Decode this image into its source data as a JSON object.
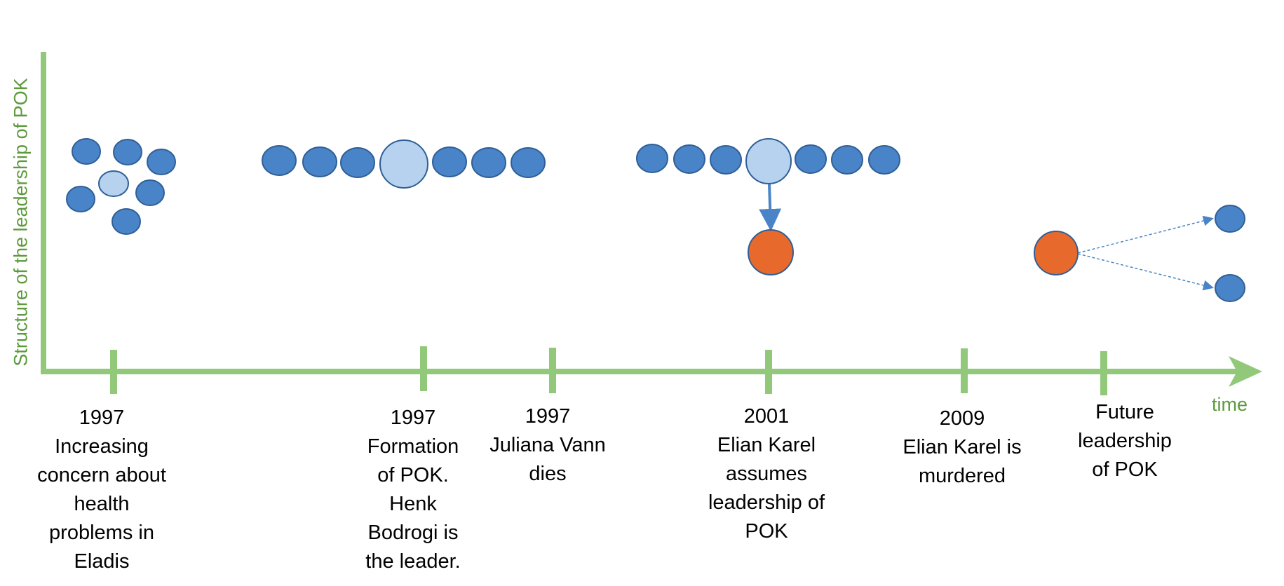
{
  "axes": {
    "y_label": "Structure of the leadership of POK",
    "x_label": "time",
    "color": "#92c87a",
    "label_color": "#5c9a3c"
  },
  "colors": {
    "member": "#4a84c8",
    "leader": "#b6d2ee",
    "new_leader": "#e8692c",
    "outline": "#2f5f96",
    "arrow": "#4a84c8"
  },
  "events": [
    {
      "lines": [
        "1997",
        "Increasing",
        "concern about",
        "health",
        "problems in",
        "Eladis"
      ]
    },
    {
      "lines": [
        "1997",
        "Formation",
        "of POK.",
        "Henk",
        "Bodrogi is",
        "the leader."
      ]
    },
    {
      "lines": [
        "1997",
        "Juliana Vann",
        "dies"
      ]
    },
    {
      "lines": [
        "2001",
        "Elian Karel",
        "assumes",
        "leadership of",
        "POK"
      ]
    },
    {
      "lines": [
        "2009",
        "Elian Karel is",
        "murdered"
      ]
    },
    {
      "lines": [
        "Future",
        "leadership",
        "of POK"
      ]
    }
  ]
}
